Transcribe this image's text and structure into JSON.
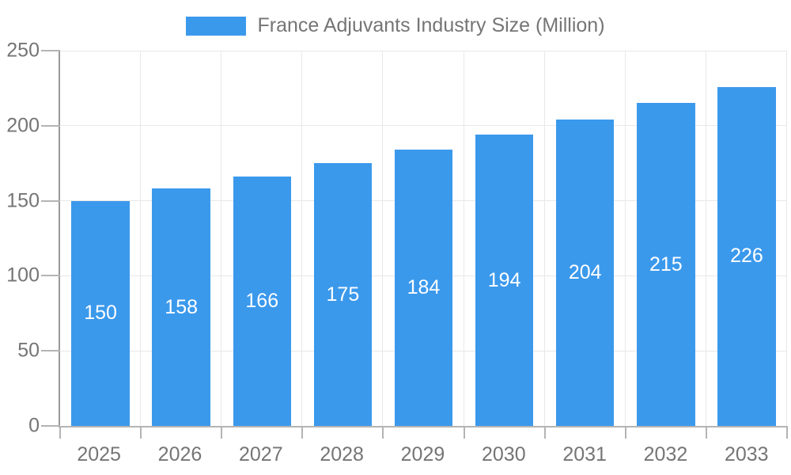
{
  "colors": {
    "bar": "#3B99EC",
    "grid": "#e8e8e8",
    "axis_x": "#b4b4b4",
    "axis_y": "#999999",
    "tick": "#b4b4b4",
    "tick_label": "#757575",
    "value_label": "#ffffff",
    "background": "#ffffff"
  },
  "chart_data": {
    "type": "bar",
    "title": "France Adjuvants Industry Size (Million)",
    "categories": [
      "2025",
      "2026",
      "2027",
      "2028",
      "2029",
      "2030",
      "2031",
      "2032",
      "2033"
    ],
    "values": [
      150,
      158,
      166,
      175,
      184,
      194,
      204,
      215,
      226
    ],
    "xlabel": "",
    "ylabel": "",
    "ylim": [
      0,
      250
    ],
    "yticks": [
      0,
      50,
      100,
      150,
      200,
      250
    ],
    "grid": true,
    "legend_position": "top",
    "bar_value_labels_inside": true
  }
}
